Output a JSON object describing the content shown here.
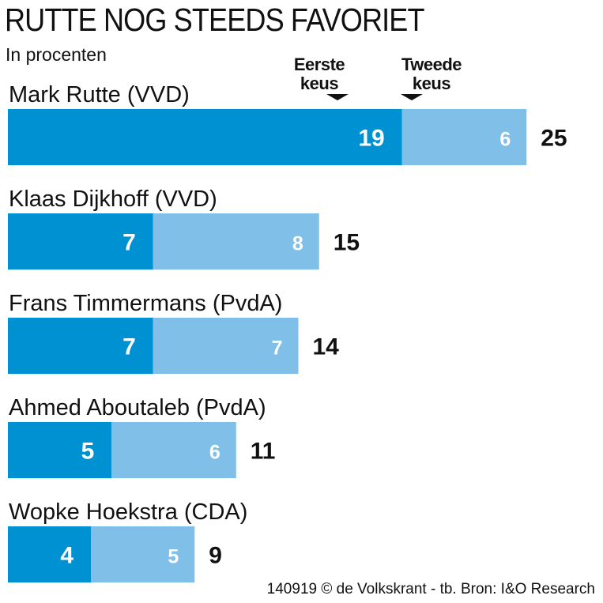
{
  "title": "RUTTE NOG STEEDS FAVORIET",
  "subtitle": "In procenten",
  "legend": {
    "first": {
      "line1": "Eerste",
      "line2": "keus"
    },
    "second": {
      "line1": "Tweede",
      "line2": "keus"
    }
  },
  "source": "140919 © de Volkskrant - tb. Bron: I&O Research",
  "colors": {
    "first": "#0091d3",
    "second": "#7fbfe8",
    "text_dark": "#111111",
    "text_light": "#ffffff"
  },
  "chart_data": {
    "type": "bar",
    "orientation": "horizontal",
    "stacked": true,
    "categories": [
      "Mark Rutte (VVD)",
      "Klaas Dijkhoff (VVD)",
      "Frans Timmermans (PvdA)",
      "Ahmed Aboutaleb (PvdA)",
      "Wopke Hoekstra (CDA)"
    ],
    "series": [
      {
        "name": "Eerste keus",
        "values": [
          19,
          7,
          7,
          5,
          4
        ]
      },
      {
        "name": "Tweede keus",
        "values": [
          6,
          8,
          7,
          6,
          5
        ]
      }
    ],
    "totals": [
      25,
      15,
      14,
      11,
      9
    ],
    "title": "RUTTE NOG STEEDS FAVORIET",
    "subtitle": "In procenten",
    "xlim": [
      0,
      25
    ],
    "grid": false,
    "legend_position": "top-right"
  }
}
